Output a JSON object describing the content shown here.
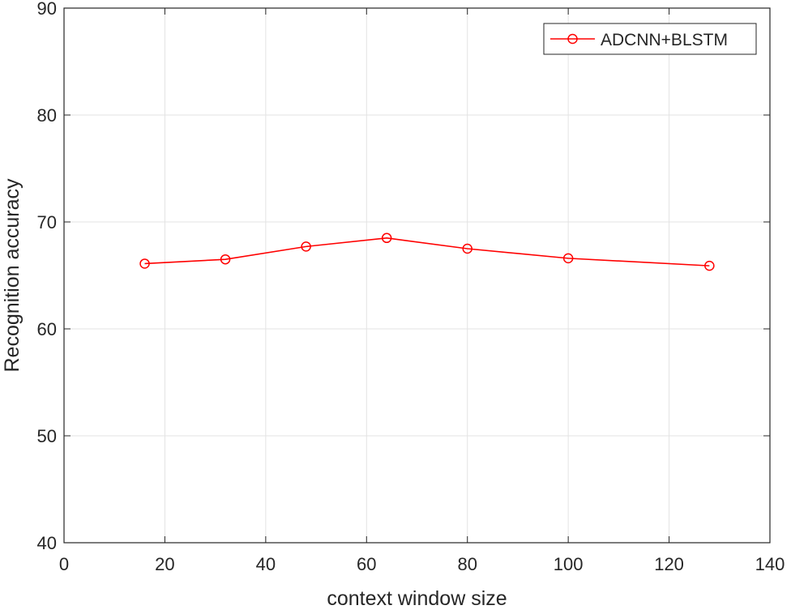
{
  "chart_data": {
    "type": "line",
    "title": "",
    "xlabel": "context window size",
    "ylabel": "Recognition accuracy",
    "xlim": [
      0,
      140
    ],
    "ylim": [
      40,
      90
    ],
    "xticks": [
      0,
      20,
      40,
      60,
      80,
      100,
      120,
      140
    ],
    "yticks": [
      40,
      50,
      60,
      70,
      80,
      90
    ],
    "xtick_labels": [
      "0",
      "20",
      "40",
      "60",
      "80",
      "100",
      "120",
      "140"
    ],
    "ytick_labels": [
      "40",
      "50",
      "60",
      "70",
      "80",
      "90"
    ],
    "grid": true,
    "legend_position": "top-right",
    "series": [
      {
        "name": "ADCNN+BLSTM",
        "color": "#ff0000",
        "marker": "circle",
        "x": [
          16,
          32,
          48,
          64,
          80,
          100,
          128
        ],
        "y": [
          66.1,
          66.5,
          67.7,
          68.5,
          67.5,
          66.6,
          65.9
        ]
      }
    ]
  }
}
